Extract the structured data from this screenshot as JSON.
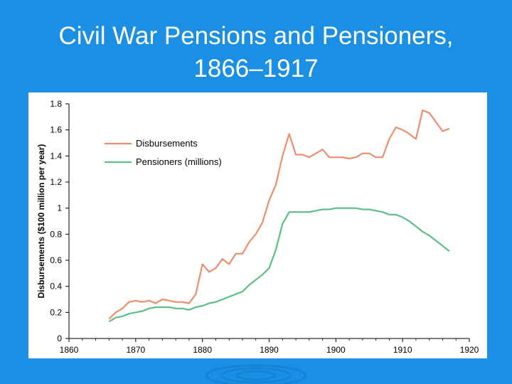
{
  "slide": {
    "title_line1": "Civil War Pensions and Pensioners,",
    "title_line2": "1866–1917"
  },
  "colors": {
    "background": "#1a8fe3",
    "disbursements": "#f08c6e",
    "pensioners": "#5cbf86"
  },
  "chart_data": {
    "type": "line",
    "title": "",
    "xlabel": "",
    "ylabel": "Disbursements ($100 million per year)",
    "xlim": [
      1860,
      1920
    ],
    "ylim": [
      0,
      1.8
    ],
    "x_ticks": [
      "1860",
      "1870",
      "1880",
      "1890",
      "1900",
      "1910",
      "1920"
    ],
    "y_ticks": [
      "0",
      "0.2",
      "0.4",
      "0.6",
      "0.8",
      "1",
      "1.2",
      "1.4",
      "1.6",
      "1.8"
    ],
    "legend_position": "upper-left",
    "grid": false,
    "series": [
      {
        "name": "Disbursements",
        "color": "#f08c6e",
        "points": [
          [
            1866,
            0.15
          ],
          [
            1867,
            0.2
          ],
          [
            1868,
            0.23
          ],
          [
            1869,
            0.28
          ],
          [
            1870,
            0.29
          ],
          [
            1871,
            0.28
          ],
          [
            1872,
            0.29
          ],
          [
            1873,
            0.27
          ],
          [
            1874,
            0.3
          ],
          [
            1875,
            0.29
          ],
          [
            1876,
            0.28
          ],
          [
            1877,
            0.28
          ],
          [
            1878,
            0.27
          ],
          [
            1879,
            0.34
          ],
          [
            1880,
            0.57
          ],
          [
            1881,
            0.51
          ],
          [
            1882,
            0.54
          ],
          [
            1883,
            0.61
          ],
          [
            1884,
            0.57
          ],
          [
            1885,
            0.65
          ],
          [
            1886,
            0.65
          ],
          [
            1887,
            0.74
          ],
          [
            1888,
            0.8
          ],
          [
            1889,
            0.89
          ],
          [
            1890,
            1.06
          ],
          [
            1891,
            1.18
          ],
          [
            1892,
            1.4
          ],
          [
            1893,
            1.57
          ],
          [
            1894,
            1.41
          ],
          [
            1895,
            1.41
          ],
          [
            1896,
            1.39
          ],
          [
            1897,
            1.42
          ],
          [
            1898,
            1.45
          ],
          [
            1899,
            1.39
          ],
          [
            1900,
            1.39
          ],
          [
            1901,
            1.39
          ],
          [
            1902,
            1.38
          ],
          [
            1903,
            1.39
          ],
          [
            1904,
            1.42
          ],
          [
            1905,
            1.42
          ],
          [
            1906,
            1.39
          ],
          [
            1907,
            1.39
          ],
          [
            1908,
            1.53
          ],
          [
            1909,
            1.62
          ],
          [
            1910,
            1.6
          ],
          [
            1911,
            1.57
          ],
          [
            1912,
            1.53
          ],
          [
            1913,
            1.75
          ],
          [
            1914,
            1.73
          ],
          [
            1915,
            1.66
          ],
          [
            1916,
            1.59
          ],
          [
            1917,
            1.61
          ]
        ]
      },
      {
        "name": "Pensioners (millions)",
        "color": "#5cbf86",
        "points": [
          [
            1866,
            0.13
          ],
          [
            1867,
            0.16
          ],
          [
            1868,
            0.17
          ],
          [
            1869,
            0.19
          ],
          [
            1870,
            0.2
          ],
          [
            1871,
            0.21
          ],
          [
            1872,
            0.23
          ],
          [
            1873,
            0.24
          ],
          [
            1874,
            0.24
          ],
          [
            1875,
            0.24
          ],
          [
            1876,
            0.23
          ],
          [
            1877,
            0.23
          ],
          [
            1878,
            0.22
          ],
          [
            1879,
            0.24
          ],
          [
            1880,
            0.25
          ],
          [
            1881,
            0.27
          ],
          [
            1882,
            0.28
          ],
          [
            1883,
            0.3
          ],
          [
            1884,
            0.32
          ],
          [
            1885,
            0.34
          ],
          [
            1886,
            0.36
          ],
          [
            1887,
            0.41
          ],
          [
            1888,
            0.45
          ],
          [
            1889,
            0.49
          ],
          [
            1890,
            0.54
          ],
          [
            1891,
            0.68
          ],
          [
            1892,
            0.88
          ],
          [
            1893,
            0.97
          ],
          [
            1894,
            0.97
          ],
          [
            1895,
            0.97
          ],
          [
            1896,
            0.97
          ],
          [
            1897,
            0.98
          ],
          [
            1898,
            0.99
          ],
          [
            1899,
            0.99
          ],
          [
            1900,
            1.0
          ],
          [
            1901,
            1.0
          ],
          [
            1902,
            1.0
          ],
          [
            1903,
            1.0
          ],
          [
            1904,
            0.99
          ],
          [
            1905,
            0.99
          ],
          [
            1906,
            0.98
          ],
          [
            1907,
            0.97
          ],
          [
            1908,
            0.95
          ],
          [
            1909,
            0.95
          ],
          [
            1910,
            0.93
          ],
          [
            1911,
            0.9
          ],
          [
            1912,
            0.86
          ],
          [
            1913,
            0.82
          ],
          [
            1914,
            0.79
          ],
          [
            1915,
            0.75
          ],
          [
            1916,
            0.71
          ],
          [
            1917,
            0.67
          ]
        ]
      }
    ]
  }
}
